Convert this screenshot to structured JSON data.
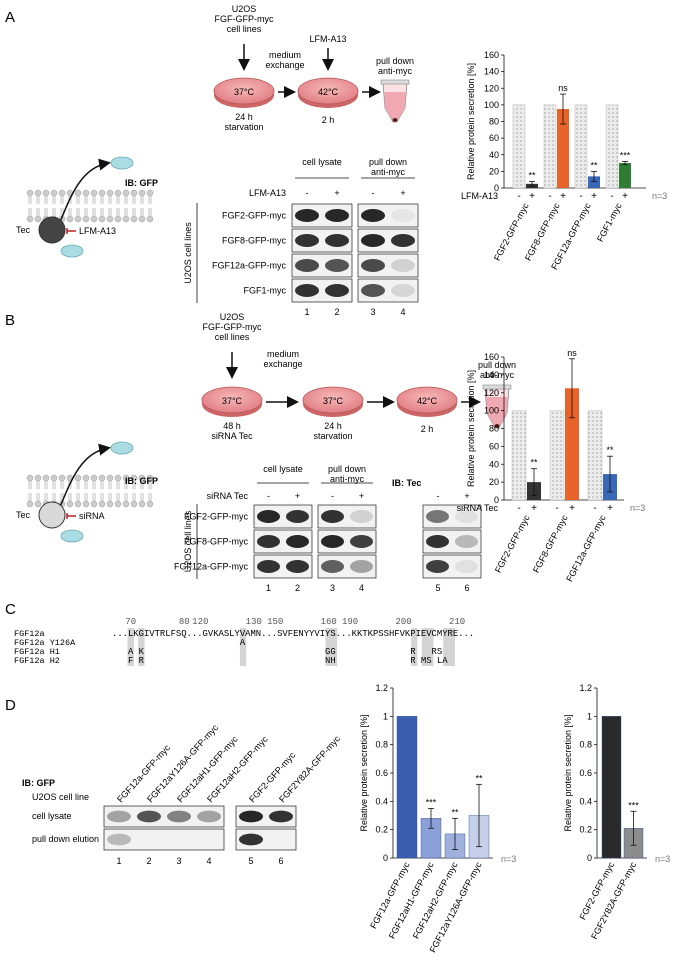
{
  "panels": {
    "A": {
      "letter": "A",
      "workflow": {
        "cells": "U2OS\nFGF-GFP-myc\ncell lines",
        "step1_label": "medium\nexchange",
        "drug_label": "LFM-A13",
        "dish1_temp": "37°C",
        "dish1_caption": "24 h\nstarvation",
        "dish2_temp": "42°C",
        "dish2_caption": "2 h",
        "tube_label": "pull down\nanti-myc"
      },
      "cartoon": {
        "kinase": "Tec",
        "inhibitor": "LFM-A13"
      },
      "blot": {
        "ib": "IB: GFP",
        "treatment": "LFM-A13",
        "signs": [
          "-",
          "+",
          "-",
          "+"
        ],
        "groups": [
          "cell lysate",
          "pull down\nanti-myc"
        ],
        "side_label": "U2OS cell lines",
        "rows": [
          "FGF2-GFP-myc",
          "FGF8-GFP-myc",
          "FGF12a-GFP-myc",
          "FGF1-myc"
        ],
        "lanes": [
          "1",
          "2",
          "3",
          "4"
        ]
      }
    },
    "B": {
      "letter": "B",
      "workflow": {
        "cells": "U2OS\nFGF-GFP-myc\ncell lines",
        "step1_label": "medium\nexchange",
        "dish1_temp": "37°C",
        "dish1_caption": "48 h\nsiRNA Tec",
        "dish2_temp": "37°C",
        "dish2_caption": "24 h\nstarvation",
        "dish3_temp": "42°C",
        "dish3_caption": "2 h",
        "tube_label": "pull down\nanti-myc"
      },
      "cartoon": {
        "kinase": "Tec",
        "inhibitor": "siRNA"
      },
      "blot": {
        "ib": "IB: GFP",
        "treatment": "siRNA Tec",
        "signs": [
          "-",
          "+",
          "-",
          "+"
        ],
        "groups": [
          "cell lysate",
          "pull down\nanti-myc"
        ],
        "side_label": "U2OS cell lines",
        "rows": [
          "FGF2-GFP-myc",
          "FGF8-GFP-myc",
          "FGF12a-GFP-myc"
        ],
        "lanes": [
          "1",
          "2",
          "3",
          "4"
        ],
        "tec_ib": "IB: Tec",
        "tec_signs": [
          "-",
          "+"
        ],
        "tec_lanes": [
          "5",
          "6"
        ]
      }
    },
    "C": {
      "letter": "C",
      "positions": [
        "70",
        "80",
        "120",
        "130",
        "150",
        "160",
        "190",
        "200",
        "210"
      ],
      "rows": [
        {
          "name": "FGF12a",
          "seq": "...LKGIVTRLFSQ...GVKASLYVAMN...SVFENYYVIYS...KKTKPSSHFVKPIEVCMYRE..."
        },
        {
          "name": "FGF12a Y126A",
          "seq": "                        A                                      "
        },
        {
          "name": "FGF12a H1",
          "seq": "   A K                                  GG              R   RS  "
        },
        {
          "name": "FGF12a H2",
          "seq": "   F R                                  NH              R MS LA "
        }
      ]
    },
    "D": {
      "letter": "D",
      "blot": {
        "ib": "IB: GFP",
        "cell_line": "U2OS cell line",
        "columns": [
          "FGF12a-GFP-myc",
          "FGF12aY126A-GFP-myc",
          "FGF12aH1-GFP-myc",
          "FGF12aH2-GFP-myc",
          "FGF2-GFP-myc",
          "FGF2Y82A-GFP-myc"
        ],
        "rows": [
          "cell lysate",
          "pull down elution"
        ],
        "lanes": [
          "1",
          "2",
          "3",
          "4",
          "5",
          "6"
        ]
      }
    }
  },
  "chart_data": [
    {
      "type": "bar",
      "panel": "A",
      "ylabel": "Relative protein secretion [%]",
      "ylim": [
        0,
        160
      ],
      "yticks": [
        0,
        20,
        40,
        60,
        80,
        100,
        120,
        140,
        160
      ],
      "treatment_label": "LFM-A13",
      "signs": [
        "-",
        "+",
        "-",
        "+",
        "-",
        "+",
        "-",
        "+"
      ],
      "categories": [
        "FGF2-GFP-myc",
        "FGF8-GFP-myc",
        "FGF12a-GFP-myc",
        "FGF1-myc"
      ],
      "series": [
        {
          "values": [
            100,
            100,
            100,
            100
          ],
          "color": "#e8e8e8"
        },
        {
          "values": [
            5,
            95,
            14,
            30
          ],
          "errors": [
            3,
            18,
            6,
            2
          ],
          "colors": [
            "#333333",
            "#e8632a",
            "#3a68b8",
            "#2e7d32"
          ],
          "sig": [
            "**",
            "ns",
            "**",
            "***"
          ]
        }
      ],
      "note": "n=3"
    },
    {
      "type": "bar",
      "panel": "B",
      "ylabel": "Relative protein secretion [%]",
      "ylim": [
        0,
        160
      ],
      "yticks": [
        0,
        20,
        40,
        60,
        80,
        100,
        120,
        140,
        160
      ],
      "treatment_label": "siRNA Tec",
      "signs": [
        "-",
        "+",
        "-",
        "+",
        "-",
        "+"
      ],
      "categories": [
        "FGF2-GFP-myc",
        "FGF8-GFP-myc",
        "FGF12a-GFP-myc"
      ],
      "series": [
        {
          "values": [
            100,
            100,
            100
          ],
          "color": "#e8e8e8"
        },
        {
          "values": [
            20,
            125,
            29
          ],
          "errors": [
            15,
            33,
            20
          ],
          "colors": [
            "#333333",
            "#e8632a",
            "#3a68b8"
          ],
          "sig": [
            "**",
            "ns",
            "**"
          ]
        }
      ],
      "note": "n=3"
    },
    {
      "type": "bar",
      "panel": "D1",
      "ylabel": "Relative protein secretion [%]",
      "ylim": [
        0,
        1.2
      ],
      "yticks": [
        "0",
        "0.2",
        "0.4",
        "0.6",
        "0.8",
        "1",
        "1.2"
      ],
      "categories": [
        "FGF12a-GFP-myc",
        "FGF12aH1-GFP-myc",
        "FGF12aH2-GFP-myc",
        "FGF12aY126A-GFP-myc"
      ],
      "values": [
        1,
        0.28,
        0.17,
        0.3
      ],
      "errors": [
        0,
        0.07,
        0.11,
        0.22
      ],
      "colors": [
        "#3a5fb0",
        "#8aa0d6",
        "#9fb0dd",
        "#c5cfea"
      ],
      "sig": [
        "",
        "***",
        "**",
        "**"
      ],
      "note": "n=3"
    },
    {
      "type": "bar",
      "panel": "D2",
      "ylabel": "Relative protein secretion [%]",
      "ylim": [
        0,
        1.2
      ],
      "yticks": [
        "0",
        "0.2",
        "0.4",
        "0.6",
        "0.8",
        "1",
        "1.2"
      ],
      "categories": [
        "FGF2-GFP-myc",
        "FGF2Y82A-GFP-myc"
      ],
      "values": [
        1,
        0.21
      ],
      "errors": [
        0,
        0.12
      ],
      "colors": [
        "#2a2a2a",
        "#8c8c8c"
      ],
      "sig": [
        "",
        "***"
      ],
      "note": "n=3"
    }
  ]
}
